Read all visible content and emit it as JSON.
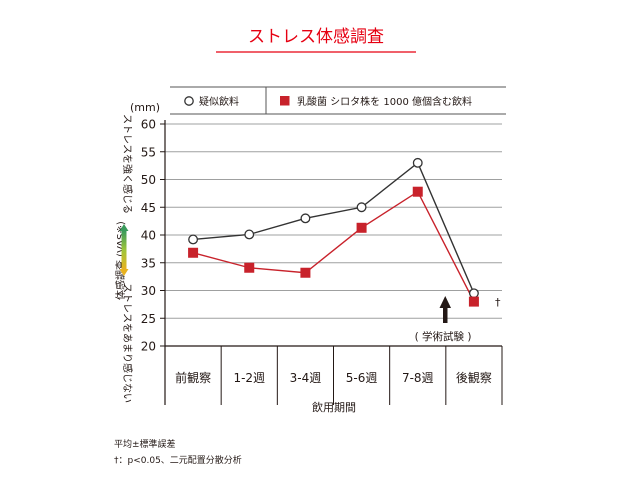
{
  "chart_data": {
    "type": "line",
    "title": "ストレス体感調査",
    "unit": "(mm)",
    "ylabel_top": "ストレスを強く感じる",
    "ylabel_mid": "体感調査 (VAS※)",
    "ylabel_bottom": "ストレスをあまり感じない",
    "xlabel": "飲用期間",
    "ylim": [
      20,
      60
    ],
    "yticks": [
      20,
      25,
      30,
      35,
      40,
      45,
      50,
      55,
      60
    ],
    "categories": [
      "前観察",
      "1-2週",
      "3-4週",
      "5-6週",
      "7-8週",
      "後観察"
    ],
    "series": [
      {
        "name": "疑似飲料",
        "marker": "circle-open",
        "color": "#333333",
        "values": [
          39.2,
          40.1,
          43.0,
          45.0,
          53.0,
          29.5
        ]
      },
      {
        "name": "乳酸菌 シロタ株を 1000 億個含む飲料",
        "marker": "square",
        "color": "#c8222b",
        "values": [
          36.8,
          34.1,
          33.2,
          41.3,
          47.8,
          28.0
        ]
      }
    ],
    "annotations": {
      "dagger": "†",
      "exam": "( 学術試験 )"
    },
    "grid": true,
    "legend": "top",
    "accent_color": "#e60012"
  },
  "footnotes": {
    "line1": "平均±標準誤差",
    "line2": "†：p<0.05、二元配置分散分析"
  }
}
